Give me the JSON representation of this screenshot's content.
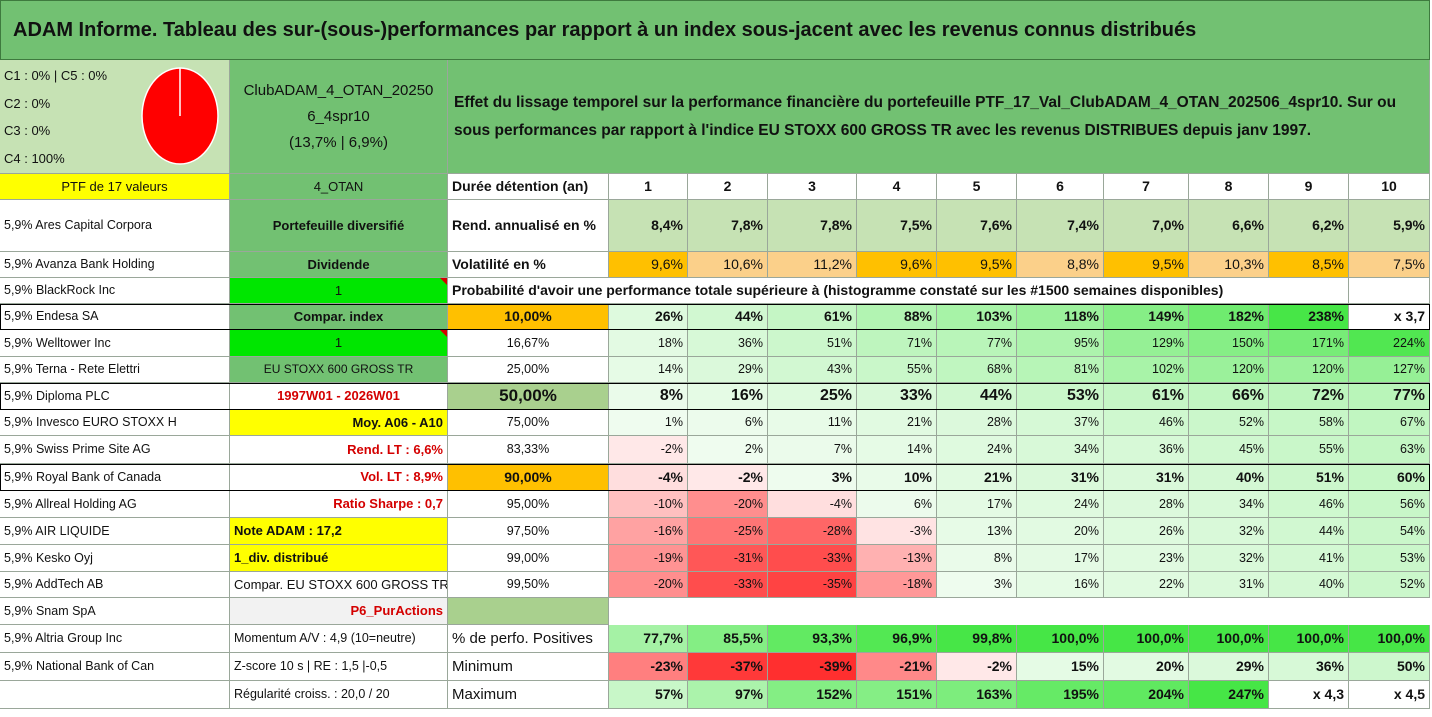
{
  "title": "ADAM Informe. Tableau des sur-(sous-)performances par rapport à un index sous-jacent avec les revenus connus distribués",
  "colors": {
    "green_header": "#72c172",
    "pale_green": "#c6e2b4",
    "yellow": "#ffff00",
    "bright_green": "#00e600",
    "orange": "#ffc000",
    "pie_red": "#ff0000"
  },
  "pie": {
    "legend": [
      "C1 : 0% | C5 : 0%",
      "C2 : 0%",
      "C3 : 0%",
      "C4 : 100%"
    ],
    "c4_share": 1.0
  },
  "portfolio": {
    "name_lines": [
      "ClubADAM_4_OTAN_20250",
      "6_4spr10",
      "(13,7% | 6,9%)"
    ]
  },
  "description": "Effet du lissage temporel sur la performance financière du portefeuille PTF_17_Val_ClubADAM_4_OTAN_202506_4spr10. Sur ou sous performances par rapport à l'indice EU STOXX 600 GROSS TR avec les revenus DISTRIBUES depuis janv 1997.",
  "left_header": "PTF de 17 valeurs",
  "holdings": [
    "5,9% Ares Capital Corpora",
    "5,9% Avanza Bank Holding",
    "5,9% BlackRock Inc",
    "5,9% Endesa SA",
    "5,9% Welltower Inc",
    "5,9% Terna - Rete Elettri",
    "5,9% Diploma PLC",
    "5,9% Invesco EURO STOXX H",
    "5,9% Swiss Prime Site AG",
    "5,9% Royal Bank of Canada",
    "5,9% Allreal Holding AG",
    "5,9% AIR LIQUIDE",
    "5,9% Kesko Oyj",
    "5,9% AddTech AB",
    "5,9% Snam SpA",
    "5,9% Altria Group Inc",
    "5,9% National Bank of Can"
  ],
  "info": [
    "4_OTAN",
    "Portefeuille diversifié",
    "Dividende",
    "1",
    "Compar. index",
    "1",
    "EU STOXX 600 GROSS TR",
    "1997W01 - 2026W01",
    "Moy. A06 - A10",
    "Rend. LT : 6,6%",
    "Vol. LT : 8,9%",
    "Ratio Sharpe : 0,7",
    "Note ADAM : 17,2",
    "1_div. distribué",
    "Compar. EU STOXX 600 GROSS TR",
    "P6_PurActions",
    "Momentum A/V : 4,9 (10=neutre)",
    "Z-score 10 s | RE : 1,5 |-0,5",
    "Régularité croiss. : 20,0 / 20"
  ],
  "table": {
    "duration_label": "Durée détention (an)",
    "years": [
      "1",
      "2",
      "3",
      "4",
      "5",
      "6",
      "7",
      "8",
      "9",
      "10"
    ],
    "rend_label": "Rend. annualisé en %",
    "rend": [
      "8,4%",
      "7,8%",
      "7,8%",
      "7,5%",
      "7,6%",
      "7,4%",
      "7,0%",
      "6,6%",
      "6,2%",
      "5,9%"
    ],
    "vol_label": "Volatilité en %",
    "vol": [
      "9,6%",
      "10,6%",
      "11,2%",
      "9,6%",
      "9,5%",
      "8,8%",
      "9,5%",
      "10,3%",
      "8,5%",
      "7,5%"
    ],
    "prob_title": "Probabilité d'avoir une performance totale supérieure à (histogramme constaté sur les #1500 semaines disponibles)",
    "prob_rows": [
      {
        "p": "10,00%",
        "v": [
          "26%",
          "44%",
          "61%",
          "88%",
          "103%",
          "118%",
          "149%",
          "182%",
          "238%",
          "x 3,7"
        ]
      },
      {
        "p": "16,67%",
        "v": [
          "18%",
          "36%",
          "51%",
          "71%",
          "77%",
          "95%",
          "129%",
          "150%",
          "171%",
          "224%"
        ]
      },
      {
        "p": "25,00%",
        "v": [
          "14%",
          "29%",
          "43%",
          "55%",
          "68%",
          "81%",
          "102%",
          "120%",
          "120%",
          "127%"
        ]
      },
      {
        "p": "50,00%",
        "v": [
          "8%",
          "16%",
          "25%",
          "33%",
          "44%",
          "53%",
          "61%",
          "66%",
          "72%",
          "77%"
        ]
      },
      {
        "p": "75,00%",
        "v": [
          "1%",
          "6%",
          "11%",
          "21%",
          "28%",
          "37%",
          "46%",
          "52%",
          "58%",
          "67%"
        ]
      },
      {
        "p": "83,33%",
        "v": [
          "-2%",
          "2%",
          "7%",
          "14%",
          "24%",
          "34%",
          "36%",
          "45%",
          "55%",
          "63%"
        ]
      },
      {
        "p": "90,00%",
        "v": [
          "-4%",
          "-2%",
          "3%",
          "10%",
          "21%",
          "31%",
          "31%",
          "40%",
          "51%",
          "60%"
        ]
      },
      {
        "p": "95,00%",
        "v": [
          "-10%",
          "-20%",
          "-4%",
          "6%",
          "17%",
          "24%",
          "28%",
          "34%",
          "46%",
          "56%"
        ]
      },
      {
        "p": "97,50%",
        "v": [
          "-16%",
          "-25%",
          "-28%",
          "-3%",
          "13%",
          "20%",
          "26%",
          "32%",
          "44%",
          "54%"
        ]
      },
      {
        "p": "99,00%",
        "v": [
          "-19%",
          "-31%",
          "-33%",
          "-13%",
          "8%",
          "17%",
          "23%",
          "32%",
          "41%",
          "53%"
        ]
      },
      {
        "p": "99,50%",
        "v": [
          "-20%",
          "-33%",
          "-35%",
          "-18%",
          "3%",
          "16%",
          "22%",
          "31%",
          "40%",
          "52%"
        ]
      }
    ],
    "pos_label": "% de perfo. Positives",
    "pos": [
      "77,7%",
      "85,5%",
      "93,3%",
      "96,9%",
      "99,8%",
      "100,0%",
      "100,0%",
      "100,0%",
      "100,0%",
      "100,0%"
    ],
    "min_label": "Minimum",
    "min": [
      "-23%",
      "-37%",
      "-39%",
      "-21%",
      "-2%",
      "15%",
      "20%",
      "29%",
      "36%",
      "50%"
    ],
    "max_label": "Maximum",
    "max": [
      "57%",
      "97%",
      "152%",
      "151%",
      "163%",
      "195%",
      "204%",
      "247%",
      "x 4,3",
      "x 4,5"
    ]
  }
}
